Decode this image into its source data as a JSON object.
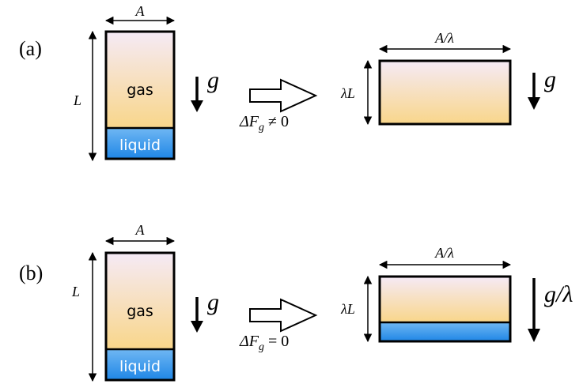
{
  "panels": [
    {
      "tag": "(a)",
      "before": {
        "width_label": "A",
        "height_label": "L",
        "gas_label": "gas",
        "liquid_label": "liquid",
        "gravity_label": "g"
      },
      "transition_label": "ΔF",
      "transition_sub": "g",
      "transition_rel": " ≠ 0",
      "after": {
        "width_label": "A/λ",
        "height_label": "λL",
        "gravity_label": "g",
        "has_liquid": false
      }
    },
    {
      "tag": "(b)",
      "before": {
        "width_label": "A",
        "height_label": "L",
        "gas_label": "gas",
        "liquid_label": "liquid",
        "gravity_label": "g"
      },
      "transition_label": "ΔF",
      "transition_sub": "g",
      "transition_rel": " = 0",
      "after": {
        "width_label": "A/λ",
        "height_label": "λL",
        "gravity_label": "g/λ",
        "has_liquid": true
      }
    }
  ],
  "colors": {
    "gas_top": "#f5eaf6",
    "gas_bottom": "#f9d68a",
    "liquid_top": "#6fb7f3",
    "liquid_bottom": "#1f86e6",
    "stroke": "#000000"
  }
}
